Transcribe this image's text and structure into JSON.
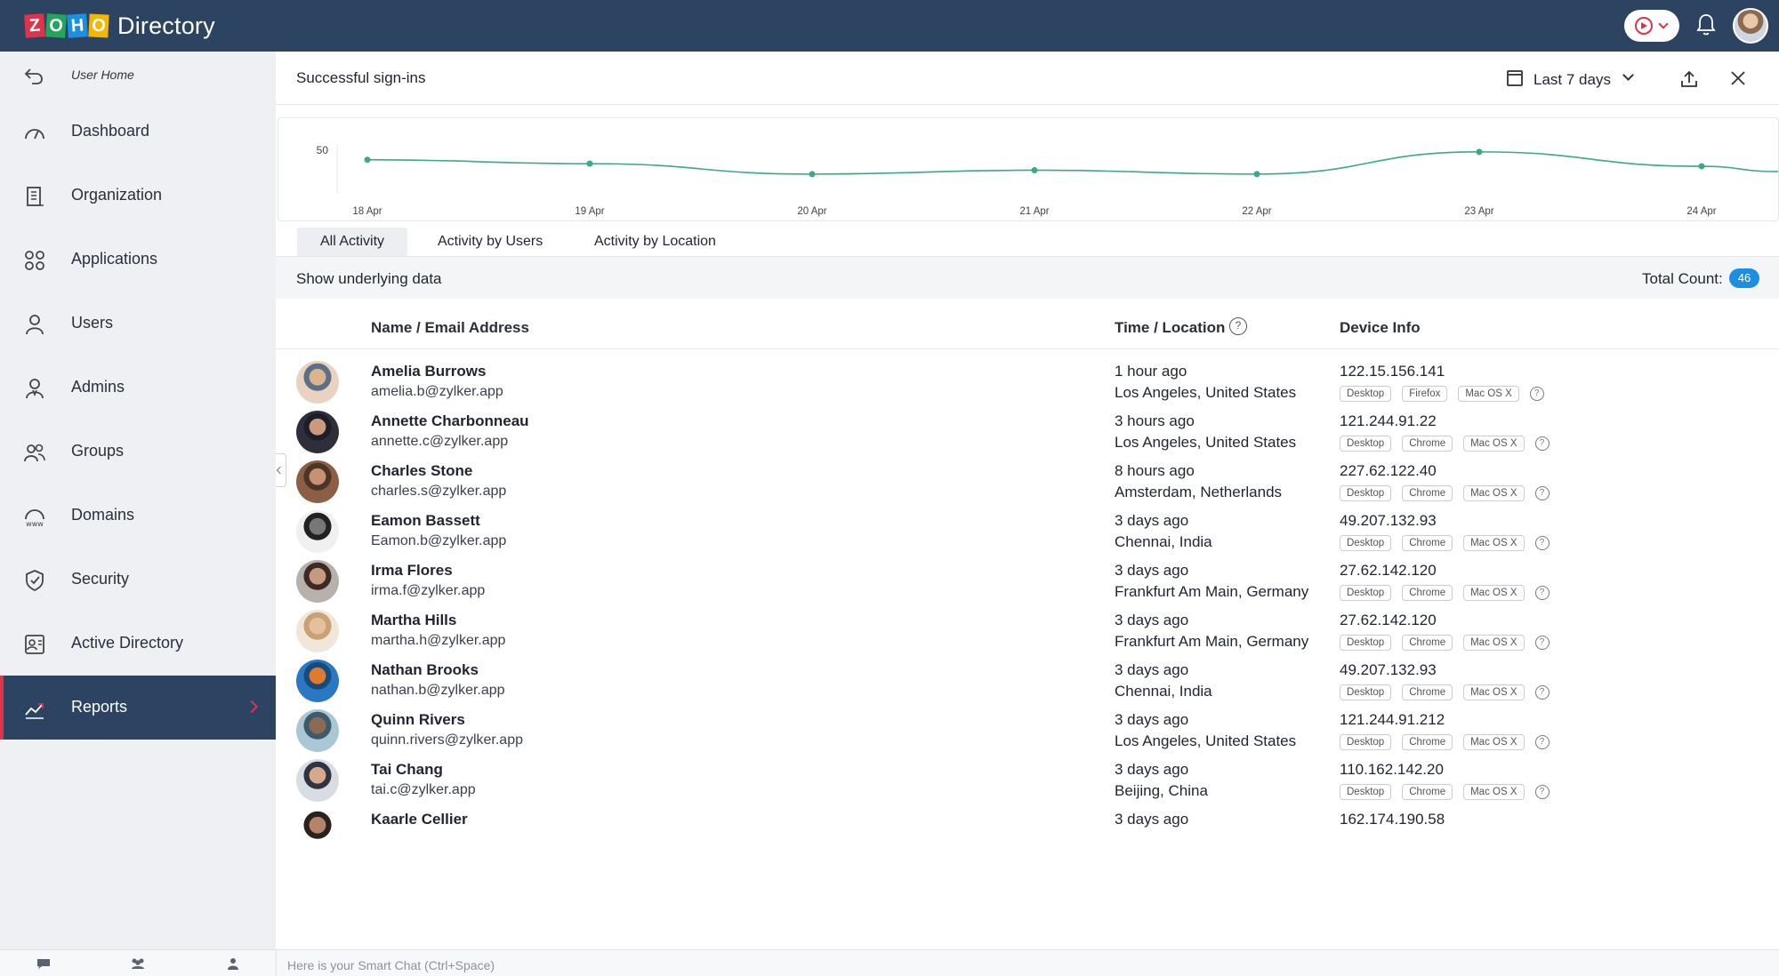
{
  "app": {
    "logo_letters": [
      "Z",
      "O",
      "H",
      "O"
    ],
    "logo_colors": [
      "#e0334b",
      "#21a65a",
      "#1a8fe3",
      "#f5b600"
    ],
    "name": "Directory"
  },
  "header_icons": [
    "recorder-icon",
    "bell-icon",
    "user-avatar"
  ],
  "sidebar": {
    "user_home": "User Home",
    "items": [
      {
        "label": "Dashboard",
        "icon": "dashboard-gauge-icon"
      },
      {
        "label": "Organization",
        "icon": "organization-icon"
      },
      {
        "label": "Applications",
        "icon": "applications-grid-icon"
      },
      {
        "label": "Users",
        "icon": "user-icon"
      },
      {
        "label": "Admins",
        "icon": "admin-icon"
      },
      {
        "label": "Groups",
        "icon": "groups-icon"
      },
      {
        "label": "Domains",
        "icon": "domains-www-icon"
      },
      {
        "label": "Security",
        "icon": "shield-icon"
      },
      {
        "label": "Active Directory",
        "icon": "active-directory-icon"
      },
      {
        "label": "Reports",
        "icon": "reports-chart-icon",
        "active": true
      }
    ]
  },
  "report": {
    "title": "Successful sign-ins",
    "date_range": "Last 7 days"
  },
  "chart_data": {
    "type": "line",
    "title": "",
    "x": [
      "18 Apr",
      "19 Apr",
      "20 Apr",
      "21 Apr",
      "22 Apr",
      "23 Apr",
      "24 Apr"
    ],
    "series": [
      {
        "values": [
          44,
          41,
          33,
          36,
          33,
          50,
          39
        ]
      }
    ],
    "y_tick_labels": [
      "50"
    ],
    "ylim": [
      20,
      54
    ],
    "grid": false,
    "line_color": "#3aa889"
  },
  "tabs": [
    "All Activity",
    "Activity by Users",
    "Activity by Location"
  ],
  "toolbar": {
    "show_data": "Show underlying data",
    "total_label": "Total Count:",
    "total_count": "46"
  },
  "table": {
    "headers": {
      "name": "Name / Email Address",
      "time": "Time / Location",
      "device": "Device Info"
    },
    "help_glyph": "?",
    "rows": [
      {
        "name": "Amelia Burrows",
        "email": "amelia.b@zylker.app",
        "time": "1 hour ago",
        "location": "Los Angeles, United States",
        "ip": "122.15.156.141",
        "tags": [
          "Desktop",
          "Firefox",
          "Mac OS X"
        ],
        "avatar_colors": [
          "#e9d2bf",
          "#d9b48f",
          "#5b6f86"
        ]
      },
      {
        "name": "Annette Charbonneau",
        "email": "annette.c@zylker.app",
        "time": "3 hours ago",
        "location": "Los Angeles, United States",
        "ip": "121.244.91.22",
        "tags": [
          "Desktop",
          "Chrome",
          "Mac OS X"
        ],
        "avatar_colors": [
          "#2e2f3a",
          "#c99a7c",
          "#1d1f28"
        ]
      },
      {
        "name": "Charles Stone",
        "email": "charles.s@zylker.app",
        "time": "8 hours ago",
        "location": "Amsterdam, Netherlands",
        "ip": "227.62.122.40",
        "tags": [
          "Desktop",
          "Chrome",
          "Mac OS X"
        ],
        "avatar_colors": [
          "#8c5e45",
          "#c69272",
          "#4a3528"
        ]
      },
      {
        "name": "Eamon Bassett",
        "email": "Eamon.b@zylker.app",
        "time": "3 days ago",
        "location": "Chennai, India",
        "ip": "49.207.132.93",
        "tags": [
          "Desktop",
          "Chrome",
          "Mac OS X"
        ],
        "avatar_colors": [
          "#f0f0f0",
          "#777777",
          "#222222"
        ]
      },
      {
        "name": "Irma Flores",
        "email": "irma.f@zylker.app",
        "time": "3 days ago",
        "location": "Frankfurt Am Main, Germany",
        "ip": "27.62.142.120",
        "tags": [
          "Desktop",
          "Chrome",
          "Mac OS X"
        ],
        "avatar_colors": [
          "#b7b0ab",
          "#c59a80",
          "#3b2b24"
        ]
      },
      {
        "name": "Martha Hills",
        "email": "martha.h@zylker.app",
        "time": "3 days ago",
        "location": "Frankfurt Am Main, Germany",
        "ip": "27.62.142.120",
        "tags": [
          "Desktop",
          "Chrome",
          "Mac OS X"
        ],
        "avatar_colors": [
          "#f1e6da",
          "#e2c19c",
          "#c9a173"
        ]
      },
      {
        "name": "Nathan Brooks",
        "email": "nathan.b@zylker.app",
        "time": "3 days ago",
        "location": "Chennai, India",
        "ip": "49.207.132.93",
        "tags": [
          "Desktop",
          "Chrome",
          "Mac OS X"
        ],
        "avatar_colors": [
          "#2a78c2",
          "#e07a2c",
          "#184b7c"
        ]
      },
      {
        "name": "Quinn Rivers",
        "email": "quinn.rivers@zylker.app",
        "time": "3 days ago",
        "location": "Los Angeles, United States",
        "ip": "121.244.91.212",
        "tags": [
          "Desktop",
          "Chrome",
          "Mac OS X"
        ],
        "avatar_colors": [
          "#a9c7d4",
          "#8d6b52",
          "#3e5b6b"
        ]
      },
      {
        "name": "Tai Chang",
        "email": "tai.c@zylker.app",
        "time": "3 days ago",
        "location": "Beijing, China",
        "ip": "110.162.142.20",
        "tags": [
          "Desktop",
          "Chrome",
          "Mac OS X"
        ],
        "avatar_colors": [
          "#d8dde3",
          "#d6a98c",
          "#2f3440"
        ]
      },
      {
        "name": "Kaarle Cellier",
        "email": "",
        "time": "3 days ago",
        "location": "",
        "ip": "162.174.190.58",
        "tags": [],
        "avatar_colors": [
          "#ffffff",
          "#b58468",
          "#2b2220"
        ]
      }
    ]
  },
  "smart_chat": {
    "placeholder": "Here is your Smart Chat (Ctrl+Space)"
  },
  "colors": {
    "topbar": "#2c4462",
    "accent_red": "#e0334b",
    "badge_blue": "#1a8fe3",
    "sidebar_bg": "#eef0f4"
  }
}
